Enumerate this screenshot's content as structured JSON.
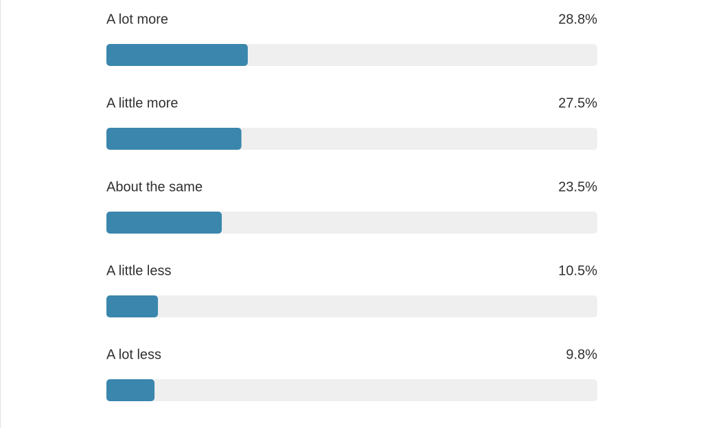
{
  "chart_data": {
    "type": "bar",
    "orientation": "horizontal",
    "categories": [
      "A lot more",
      "A little more",
      "About the same",
      "A little less",
      "A lot less"
    ],
    "values": [
      28.8,
      27.5,
      23.5,
      10.5,
      9.8
    ],
    "value_labels": [
      "28.8%",
      "27.5%",
      "23.5%",
      "10.5%",
      "9.8%"
    ],
    "color": "#3a86ad",
    "xlim": [
      0,
      100
    ]
  }
}
